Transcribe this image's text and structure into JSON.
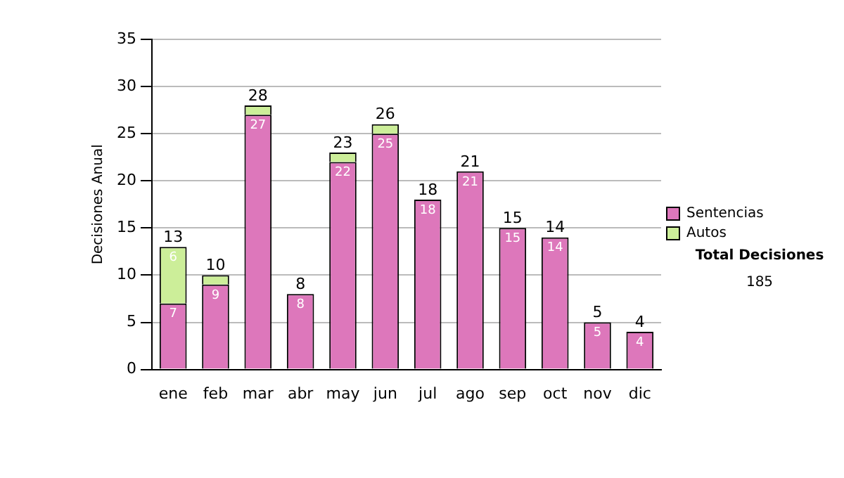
{
  "chart_data": {
    "type": "bar",
    "stacked": true,
    "ylabel": "Decisiones Anual",
    "categories": [
      "ene",
      "feb",
      "mar",
      "abr",
      "may",
      "jun",
      "jul",
      "ago",
      "sep",
      "oct",
      "nov",
      "dic"
    ],
    "series": [
      {
        "name": "Sentencias",
        "color": "#dd77bb",
        "values": [
          7,
          9,
          27,
          8,
          22,
          25,
          18,
          21,
          15,
          14,
          5,
          4
        ],
        "value_labels": [
          "7",
          "9",
          "27",
          "8",
          "22",
          "25",
          "18",
          "21",
          "15",
          "14",
          "5",
          "4"
        ]
      },
      {
        "name": "Autos",
        "color": "#ccee99",
        "values": [
          6,
          1,
          1,
          0,
          1,
          1,
          0,
          0,
          0,
          0,
          0,
          0
        ],
        "value_labels": [
          "6",
          null,
          null,
          null,
          null,
          null,
          null,
          null,
          null,
          null,
          null,
          null
        ]
      }
    ],
    "totals": [
      "13",
      "10",
      "28",
      "8",
      "23",
      "26",
      "18",
      "21",
      "15",
      "14",
      "5",
      "4"
    ],
    "ylim": [
      0,
      35
    ],
    "yticks": [
      0,
      5,
      10,
      15,
      20,
      25,
      30,
      35
    ],
    "grid": "y",
    "legend": "right",
    "annotations": [
      "Total Decisiones",
      "185"
    ]
  }
}
